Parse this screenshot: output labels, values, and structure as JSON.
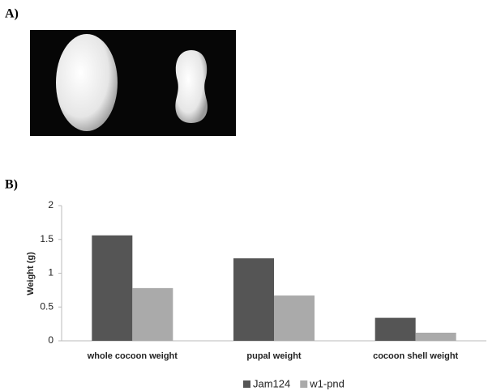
{
  "panel_labels": [
    "A)",
    "B)"
  ],
  "chart_data": {
    "type": "bar",
    "ylabel": "Weight (g)",
    "categories": [
      "whole cocoon weight",
      "pupal weight",
      "cocoon shell weight"
    ],
    "series": [
      {
        "name": "Jam124",
        "color": "#555555",
        "values": [
          1.56,
          1.22,
          0.34
        ]
      },
      {
        "name": "w1-pnd",
        "color": "#aaaaaa",
        "values": [
          0.78,
          0.67,
          0.12
        ]
      }
    ],
    "ylim": [
      0,
      2
    ],
    "yticks": [
      0,
      0.5,
      1,
      1.5,
      2
    ],
    "grid": false,
    "legend": "bottom"
  }
}
